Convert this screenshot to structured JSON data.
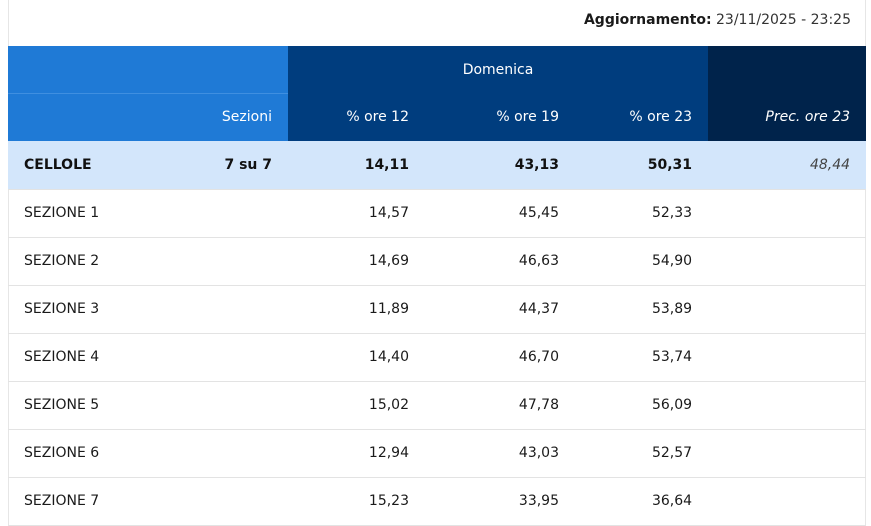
{
  "update": {
    "label": "Aggiornamento:",
    "value": "23/11/2025 - 23:25"
  },
  "header": {
    "day": "Domenica",
    "sections_label": "Sezioni",
    "col_12": "% ore 12",
    "col_19": "% ore 19",
    "col_23": "% ore 23",
    "col_prec": "Prec. ore 23"
  },
  "colors": {
    "header_light": "#1f7ad6",
    "header_mid": "#003d7e",
    "header_dark": "#00234b",
    "total_row": "#d3e6fb"
  },
  "total": {
    "name": "CELLOLE",
    "sections": "7 su 7",
    "ore12": "14,11",
    "ore19": "43,13",
    "ore23": "50,31",
    "prec": "48,44"
  },
  "rows": [
    {
      "name": "SEZIONE 1",
      "ore12": "14,57",
      "ore19": "45,45",
      "ore23": "52,33"
    },
    {
      "name": "SEZIONE 2",
      "ore12": "14,69",
      "ore19": "46,63",
      "ore23": "54,90"
    },
    {
      "name": "SEZIONE 3",
      "ore12": "11,89",
      "ore19": "44,37",
      "ore23": "53,89"
    },
    {
      "name": "SEZIONE 4",
      "ore12": "14,40",
      "ore19": "46,70",
      "ore23": "53,74"
    },
    {
      "name": "SEZIONE 5",
      "ore12": "15,02",
      "ore19": "47,78",
      "ore23": "56,09"
    },
    {
      "name": "SEZIONE 6",
      "ore12": "12,94",
      "ore19": "43,03",
      "ore23": "52,57"
    },
    {
      "name": "SEZIONE 7",
      "ore12": "15,23",
      "ore19": "33,95",
      "ore23": "36,64"
    }
  ]
}
